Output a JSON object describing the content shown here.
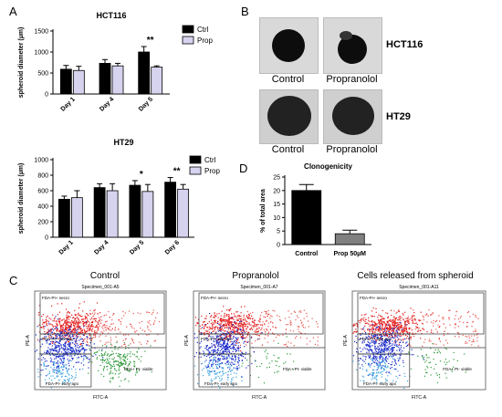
{
  "panels": {
    "A": "A",
    "B": "B",
    "C": "C",
    "D": "D"
  },
  "colors": {
    "ctrl": "#000000",
    "prop": "#d6d3ee",
    "axis": "#000000"
  },
  "chart_data": [
    {
      "type": "bar",
      "title": "HCT116",
      "ylabel": "spheroid diameter (µm)",
      "categories": [
        "Day 1",
        "Day 4",
        "Day 5"
      ],
      "series": [
        {
          "name": "Ctrl",
          "values": [
            590,
            730,
            1000
          ],
          "errors": [
            90,
            90,
            130
          ]
        },
        {
          "name": "Prop",
          "values": [
            560,
            670,
            640
          ],
          "errors": [
            100,
            60,
            30
          ]
        }
      ],
      "annotations": [
        {
          "category": "Day 5",
          "text": "**"
        }
      ],
      "ylim": [
        0,
        1500
      ],
      "yticks": [
        "0",
        "500",
        "1000",
        "1500"
      ],
      "legend": "top-right"
    },
    {
      "type": "bar",
      "title": "HT29",
      "ylabel": "spheroid diameter (µm)",
      "categories": [
        "Day 1",
        "Day 4",
        "Day 5",
        "Day 6"
      ],
      "series": [
        {
          "name": "Ctrl",
          "values": [
            490,
            640,
            670,
            710
          ],
          "errors": [
            40,
            50,
            60,
            60
          ]
        },
        {
          "name": "Prop",
          "values": [
            510,
            600,
            590,
            620
          ],
          "errors": [
            90,
            90,
            90,
            60
          ]
        }
      ],
      "annotations": [
        {
          "category": "Day 5",
          "text": "*"
        },
        {
          "category": "Day 6",
          "text": "**"
        }
      ],
      "ylim": [
        0,
        1000
      ],
      "yticks": [
        "0",
        "200",
        "400",
        "600",
        "800",
        "1000"
      ],
      "legend": "top-right"
    },
    {
      "type": "bar",
      "title": "Clonogenicity",
      "ylabel": "% of total area",
      "categories": [
        "Control",
        "Prop 50µM"
      ],
      "values": [
        20,
        4
      ],
      "errors": [
        2.2,
        1.3
      ],
      "bar_colors": [
        "#000000",
        "#808080"
      ],
      "ylim": [
        0,
        25
      ],
      "yticks": [
        "0",
        "5",
        "10",
        "15",
        "20",
        "25"
      ]
    }
  ],
  "panel_b": {
    "col_labels": [
      "Control",
      "Propranolol"
    ],
    "rows": [
      "HCT116",
      "HT29"
    ]
  },
  "panel_c": {
    "titles": [
      "Control",
      "Propranolol",
      "Cells released  from spheroid"
    ],
    "specimens": [
      "Specimen_001-A5",
      "Specimen_001-A7",
      "Specimen_001-A11"
    ],
    "gates": [
      "FDA-PI+ necro",
      "FDA-PI+ late apo",
      "FDA+ PI- viable",
      "FDA-PI- early apo"
    ],
    "xlabel": "FITC-A",
    "ylabel": "PE-A"
  }
}
